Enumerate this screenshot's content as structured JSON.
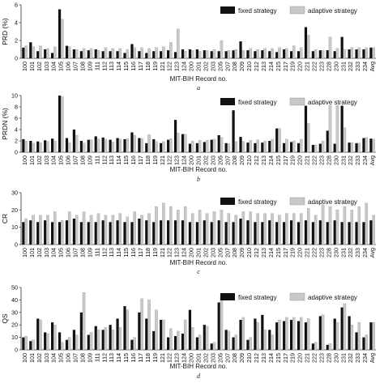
{
  "figure": {
    "colors": {
      "fixed": "#111111",
      "adaptive": "#c8c8c8",
      "axis": "#333333"
    }
  },
  "chart_data": [
    {
      "type": "bar",
      "panel_label": "a",
      "ylabel": "PRD (%)",
      "xlabel": "MIT-BIH Record no.",
      "ylim": [
        0,
        6
      ],
      "yticks": [
        0,
        2,
        4,
        6
      ],
      "legend_position": "top-right",
      "categories": [
        "100",
        "101",
        "102",
        "103",
        "104",
        "105",
        "106",
        "107",
        "108",
        "109",
        "111",
        "112",
        "113",
        "114",
        "115",
        "116",
        "117",
        "118",
        "119",
        "121",
        "122",
        "123",
        "124",
        "200",
        "201",
        "202",
        "203",
        "205",
        "207",
        "208",
        "209",
        "210",
        "212",
        "213",
        "214",
        "215",
        "217",
        "219",
        "220",
        "221",
        "222",
        "223",
        "228",
        "230",
        "231",
        "232",
        "233",
        "234",
        "Avg"
      ],
      "series": [
        {
          "name": "fixed strategy",
          "values": [
            1.2,
            1.8,
            0.8,
            1.0,
            0.6,
            5.5,
            1.4,
            1.0,
            0.8,
            0.9,
            1.0,
            0.8,
            0.8,
            0.8,
            0.6,
            1.6,
            0.8,
            0.6,
            0.8,
            0.8,
            0.9,
            0.7,
            1.0,
            1.0,
            1.0,
            0.9,
            0.8,
            0.8,
            0.8,
            0.9,
            1.9,
            0.9,
            0.8,
            0.9,
            0.8,
            0.7,
            1.0,
            0.8,
            0.8,
            3.5,
            0.8,
            0.9,
            0.9,
            0.8,
            2.4,
            1.0,
            1.0,
            1.0,
            1.2
          ]
        },
        {
          "name": "adaptive strategy",
          "values": [
            1.4,
            1.3,
            1.4,
            1.1,
            1.3,
            4.4,
            1.3,
            1.0,
            1.1,
            1.1,
            0.9,
            1.2,
            1.1,
            1.1,
            1.0,
            1.2,
            1.2,
            1.1,
            1.2,
            1.3,
            1.8,
            3.3,
            0.8,
            0.9,
            0.8,
            0.9,
            1.0,
            2.0,
            0.9,
            1.0,
            0.9,
            1.1,
            1.0,
            1.1,
            1.1,
            1.2,
            1.1,
            1.4,
            1.2,
            2.6,
            1.0,
            0.9,
            2.4,
            1.1,
            1.0,
            1.2,
            1.2,
            1.2,
            1.2
          ]
        }
      ]
    },
    {
      "type": "bar",
      "panel_label": "b",
      "ylabel": "PRDN (%)",
      "xlabel": "MIT-BIH Record no.",
      "ylim": [
        0,
        10
      ],
      "yticks": [
        0,
        2,
        4,
        6,
        8,
        10
      ],
      "legend_position": "top-right",
      "categories": [
        "100",
        "101",
        "102",
        "103",
        "104",
        "105",
        "106",
        "107",
        "108",
        "109",
        "111",
        "112",
        "113",
        "114",
        "115",
        "116",
        "117",
        "118",
        "119",
        "121",
        "122",
        "123",
        "124",
        "200",
        "201",
        "202",
        "203",
        "205",
        "207",
        "208",
        "209",
        "210",
        "212",
        "213",
        "214",
        "215",
        "217",
        "219",
        "220",
        "221",
        "222",
        "223",
        "228",
        "230",
        "231",
        "232",
        "233",
        "234",
        "Avg"
      ],
      "series": [
        {
          "name": "fixed strategy",
          "values": [
            2.3,
            2.0,
            1.9,
            2.1,
            2.4,
            10.0,
            2.5,
            4.0,
            2.0,
            2.2,
            2.8,
            2.6,
            2.2,
            2.5,
            2.3,
            3.5,
            2.5,
            1.6,
            2.3,
            1.6,
            2.2,
            5.7,
            3.2,
            1.5,
            1.6,
            1.8,
            2.2,
            3.0,
            1.6,
            7.4,
            2.7,
            1.7,
            1.6,
            1.7,
            2.0,
            4.2,
            1.6,
            1.8,
            1.6,
            8.2,
            1.3,
            1.5,
            3.8,
            1.5,
            8.2,
            1.7,
            1.6,
            2.5,
            2.4
          ]
        },
        {
          "name": "adaptive strategy",
          "values": [
            2.0,
            1.6,
            1.7,
            1.9,
            2.0,
            9.8,
            1.7,
            3.0,
            1.6,
            2.2,
            2.3,
            2.3,
            1.8,
            2.3,
            2.4,
            3.0,
            2.4,
            3.1,
            1.9,
            1.9,
            2.4,
            3.4,
            3.2,
            2.0,
            2.1,
            2.1,
            2.3,
            2.6,
            1.5,
            1.9,
            1.9,
            2.1,
            2.2,
            2.0,
            2.3,
            4.2,
            2.3,
            2.0,
            2.3,
            5.1,
            1.3,
            2.0,
            8.3,
            8.3,
            4.3,
            1.7,
            1.6,
            2.6,
            2.3
          ]
        }
      ]
    },
    {
      "type": "bar",
      "panel_label": "c",
      "ylabel": "CR",
      "xlabel": "MIT-BIH Record no.",
      "ylim": [
        0,
        30
      ],
      "yticks": [
        0,
        10,
        20,
        30
      ],
      "legend_position": "top-right",
      "categories": [
        "100",
        "101",
        "102",
        "103",
        "104",
        "105",
        "106",
        "107",
        "108",
        "109",
        "111",
        "112",
        "113",
        "114",
        "115",
        "116",
        "117",
        "118",
        "119",
        "121",
        "122",
        "123",
        "124",
        "200",
        "201",
        "202",
        "203",
        "205",
        "207",
        "208",
        "209",
        "210",
        "212",
        "213",
        "214",
        "215",
        "217",
        "219",
        "220",
        "221",
        "222",
        "223",
        "228",
        "230",
        "231",
        "232",
        "233",
        "234",
        "Avg"
      ],
      "series": [
        {
          "name": "fixed strategy",
          "values": [
            13,
            14,
            13,
            14,
            13,
            13,
            14,
            15,
            13,
            13,
            13,
            14,
            13,
            14,
            13,
            13,
            15,
            14,
            13,
            14,
            14,
            14,
            14,
            13,
            13,
            14,
            13,
            14,
            13,
            13,
            15,
            14,
            13,
            13,
            14,
            13,
            13,
            14,
            13,
            14,
            13,
            14,
            13,
            14,
            13,
            13,
            13,
            13,
            14
          ]
        },
        {
          "name": "adaptive strategy",
          "values": [
            15,
            17,
            17,
            17,
            19,
            14,
            19,
            17,
            19,
            17,
            18,
            17,
            17,
            18,
            16,
            19,
            17,
            18,
            22,
            24,
            22,
            20,
            22,
            18,
            20,
            18,
            19,
            20,
            18,
            17,
            19,
            19,
            18,
            18,
            18,
            17,
            18,
            18,
            18,
            21,
            17,
            23,
            22,
            20,
            22,
            20,
            22,
            24,
            17
          ]
        }
      ]
    },
    {
      "type": "bar",
      "panel_label": "d",
      "ylabel": "QS",
      "xlabel": "MIT-BIH Record no.",
      "ylim": [
        0,
        50
      ],
      "yticks": [
        0,
        10,
        20,
        30,
        40,
        50
      ],
      "legend_position": "top-right",
      "categories": [
        "100",
        "101",
        "102",
        "103",
        "104",
        "105",
        "106",
        "107",
        "108",
        "109",
        "111",
        "112",
        "113",
        "114",
        "115",
        "116",
        "117",
        "118",
        "119",
        "121",
        "122",
        "123",
        "124",
        "200",
        "201",
        "202",
        "203",
        "205",
        "207",
        "208",
        "209",
        "210",
        "212",
        "213",
        "214",
        "215",
        "217",
        "219",
        "220",
        "221",
        "222",
        "223",
        "228",
        "230",
        "231",
        "232",
        "233",
        "234",
        "Avg"
      ],
      "series": [
        {
          "name": "fixed strategy",
          "values": [
            10,
            7,
            25,
            14,
            22,
            14,
            8,
            16,
            30,
            12,
            19,
            16,
            20,
            25,
            35,
            8,
            30,
            25,
            15,
            24,
            10,
            11,
            13,
            32,
            10,
            20,
            5,
            38,
            16,
            10,
            24,
            8,
            25,
            28,
            16,
            22,
            23,
            24,
            23,
            22,
            5,
            27,
            4,
            25,
            34,
            27,
            14,
            10,
            22
          ]
        },
        {
          "name": "adaptive strategy",
          "values": [
            11,
            8,
            24,
            13,
            20,
            6,
            10,
            12,
            46,
            14,
            16,
            18,
            16,
            18,
            32,
            10,
            41,
            40,
            32,
            24,
            17,
            15,
            24,
            18,
            12,
            19,
            6,
            42,
            15,
            12,
            26,
            10,
            22,
            16,
            12,
            24,
            26,
            26,
            26,
            25,
            6,
            28,
            5,
            22,
            37,
            20,
            22,
            12,
            22
          ]
        }
      ]
    }
  ]
}
